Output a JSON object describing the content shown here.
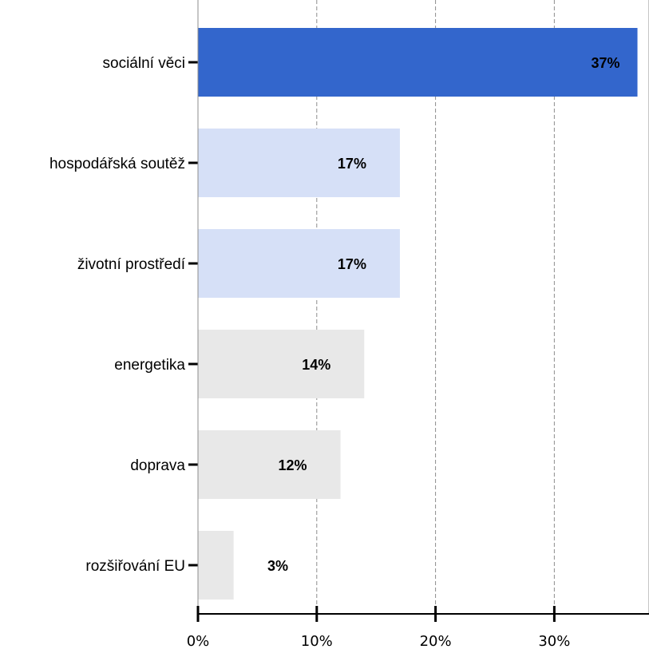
{
  "chart_data": {
    "type": "bar",
    "orientation": "horizontal",
    "categories": [
      "sociální věci",
      "hospodářská soutěž",
      "životní prostředí",
      "energetika",
      "doprava",
      "rozšiřování EU"
    ],
    "values": [
      37,
      17,
      17,
      14,
      12,
      3
    ],
    "value_labels": [
      "37%",
      "17%",
      "17%",
      "14%",
      "12%",
      "3%"
    ],
    "bar_colors": [
      "#3366cc",
      "#d6e0f7",
      "#d6e0f7",
      "#e8e8e8",
      "#e8e8e8",
      "#e8e8e8"
    ],
    "xlim": [
      0,
      37.3
    ],
    "x_ticks": [
      0,
      10,
      20,
      30
    ],
    "x_tick_labels": [
      "0%",
      "10%",
      "20%",
      "30%"
    ],
    "grid": "vertical dashed",
    "legend": "none"
  }
}
